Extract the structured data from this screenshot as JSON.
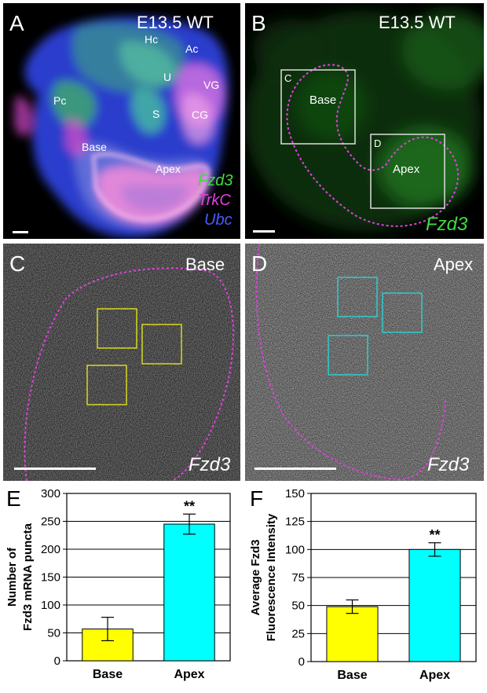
{
  "panels": {
    "A": {
      "letter": "A",
      "title": "E13.5 WT",
      "structures": [
        "Hc",
        "Ac",
        "U",
        "VG",
        "Pc",
        "S",
        "CG",
        "Base",
        "Apex"
      ],
      "legend": [
        {
          "text": "Fzd3",
          "color": "#3ddc3d"
        },
        {
          "text": "TrkC",
          "color": "#e040e0"
        },
        {
          "text": "Ubc",
          "color": "#4a5cff"
        }
      ]
    },
    "B": {
      "letter": "B",
      "title": "E13.5 WT",
      "box_c": "C",
      "box_d": "D",
      "base": "Base",
      "apex": "Apex",
      "channel": "Fzd3",
      "channel_color": "#3ddc3d"
    },
    "C": {
      "letter": "C",
      "title": "Base",
      "channel": "Fzd3",
      "roi_color": "#d8d820"
    },
    "D": {
      "letter": "D",
      "title": "Apex",
      "channel": "Fzd3",
      "roi_color": "#2ecccc"
    }
  },
  "chart_data": [
    {
      "panel_letter": "E",
      "type": "bar",
      "categories": [
        "Base",
        "Apex"
      ],
      "values": [
        57,
        245
      ],
      "errors": [
        21,
        18
      ],
      "colors": [
        "#ffff00",
        "#00ffff"
      ],
      "significance": [
        "",
        "**"
      ],
      "ylabel": [
        "Number of",
        "Fzd3 mRNA puncta"
      ],
      "ylim": [
        0,
        300
      ],
      "yticks": [
        0,
        50,
        100,
        150,
        200,
        250,
        300
      ],
      "grid": true
    },
    {
      "panel_letter": "F",
      "type": "bar",
      "categories": [
        "Base",
        "Apex"
      ],
      "values": [
        49,
        100
      ],
      "errors": [
        6,
        6
      ],
      "colors": [
        "#ffff00",
        "#00ffff"
      ],
      "significance": [
        "",
        "**"
      ],
      "ylabel": [
        "Average Fzd3",
        "Fluorescence Intensity"
      ],
      "ylim": [
        0,
        150
      ],
      "yticks": [
        0,
        25,
        50,
        75,
        100,
        125,
        150
      ],
      "grid": true
    }
  ]
}
